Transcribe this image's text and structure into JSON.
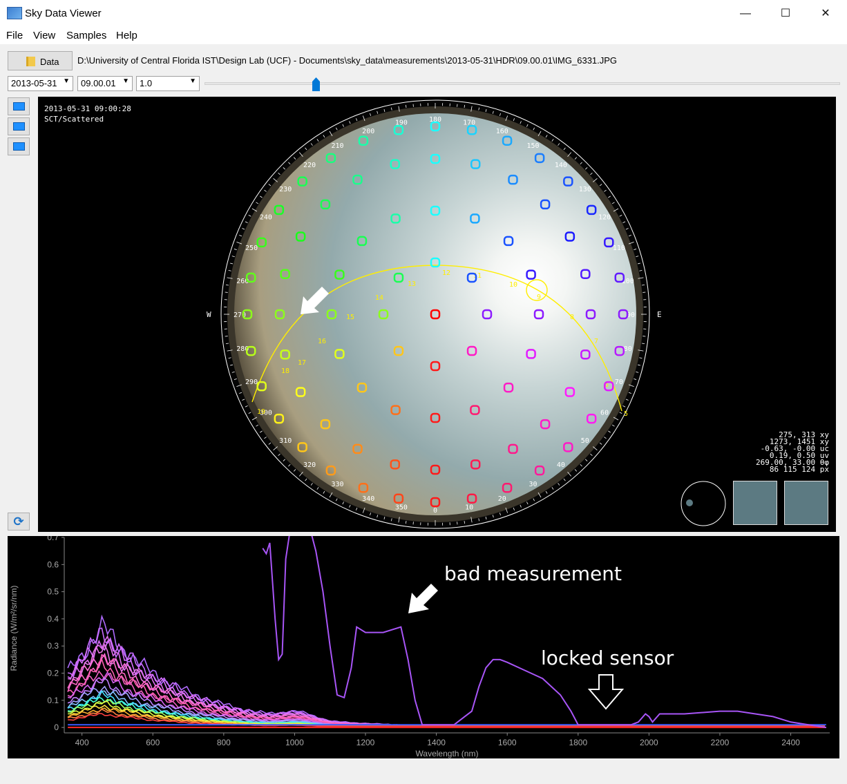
{
  "window": {
    "title": "Sky Data Viewer",
    "minimize": "—",
    "maximize": "☐",
    "close": "✕"
  },
  "menu": [
    "File",
    "View",
    "Samples",
    "Help"
  ],
  "toolbar": {
    "data_button": "Data",
    "path": "D:\\University of Central Florida IST\\Design Lab (UCF) - Documents\\sky_data\\measurements\\2013-05-31\\HDR\\09.00.01\\IMG_6331.JPG",
    "date": "2013-05-31",
    "time": "09.00.01",
    "exposure": "1.0",
    "slider_fraction": 0.175
  },
  "viewer": {
    "timestamp": "2013-05-31 09:00:28",
    "condition": "SCT/Scattered",
    "compass_w": "W",
    "compass_e": "E",
    "azimuth_labels": [
      "0",
      "10",
      "20",
      "30",
      "40",
      "50",
      "60",
      "70",
      "80",
      "90",
      "100",
      "110",
      "120",
      "130",
      "140",
      "150",
      "160",
      "170",
      "180",
      "190",
      "200",
      "210",
      "220",
      "230",
      "240",
      "250",
      "260",
      "270",
      "280",
      "290",
      "300",
      "310",
      "320",
      "330",
      "340",
      "350"
    ],
    "sun_path_hours": [
      "5",
      "6",
      "7",
      "8",
      "9",
      "10",
      "11",
      "12",
      "13",
      "14",
      "15",
      "16",
      "17",
      "18",
      "19"
    ],
    "readout": [
      "275, 313 xy",
      "1273, 1451 xy",
      "-0.63, -0.00 uc",
      "0.19, 0.50 uv",
      "269.00, 33.00 θφ",
      "86 115 124 px"
    ],
    "thumb_color": "#5c7a82",
    "sun_path_color": "#ffee00"
  },
  "chart_data": {
    "type": "line",
    "xlabel": "Wavelength (nm)",
    "ylabel": "Radiance (W/m²/sr/nm)",
    "xlim": [
      350,
      2510
    ],
    "ylim": [
      -0.02,
      0.7
    ],
    "x_ticks": [
      "400",
      "600",
      "800",
      "1000",
      "1200",
      "1400",
      "1600",
      "1800",
      "2000",
      "2200",
      "2400"
    ],
    "y_ticks": [
      "0",
      "0.1",
      "0.2",
      "0.3",
      "0.4",
      "0.5",
      "0.6",
      "0.7"
    ],
    "annotations": {
      "bad": "bad measurement",
      "locked": "locked sensor"
    },
    "bad_series": {
      "color": "#a855f7",
      "x": [
        910,
        920,
        930,
        945,
        955,
        965,
        975,
        990,
        1000,
        1020,
        1040,
        1060,
        1080,
        1100,
        1120,
        1140,
        1160,
        1175,
        1200,
        1250,
        1300,
        1320,
        1340,
        1360,
        1400,
        1450,
        1480,
        1500,
        1520,
        1540,
        1560,
        1580,
        1600,
        1650,
        1700,
        1750,
        1780,
        1800,
        1820,
        1850,
        1900,
        1950,
        1970,
        1990,
        2000,
        2010,
        2030,
        2100,
        2200,
        2250,
        2300,
        2350,
        2400,
        2450,
        2500
      ],
      "y": [
        0.66,
        0.64,
        0.68,
        0.4,
        0.25,
        0.27,
        0.62,
        0.75,
        0.75,
        0.75,
        0.75,
        0.65,
        0.5,
        0.3,
        0.12,
        0.11,
        0.22,
        0.37,
        0.35,
        0.35,
        0.37,
        0.25,
        0.1,
        0.01,
        0.01,
        0.01,
        0.04,
        0.06,
        0.15,
        0.22,
        0.25,
        0.25,
        0.24,
        0.21,
        0.18,
        0.12,
        0.06,
        0.01,
        0.01,
        0.01,
        0.01,
        0.01,
        0.02,
        0.05,
        0.04,
        0.02,
        0.05,
        0.05,
        0.06,
        0.06,
        0.05,
        0.04,
        0.02,
        0.01,
        0.0
      ]
    },
    "flat_series": [
      {
        "color": "#3b5bff",
        "value": 0.01
      },
      {
        "color": "#ff2a2a",
        "value": 0.0
      }
    ],
    "family_peaks": [
      0.37,
      0.35,
      0.33,
      0.31,
      0.29,
      0.27,
      0.25,
      0.23,
      0.21,
      0.19,
      0.17,
      0.15,
      0.13,
      0.12,
      0.11,
      0.1,
      0.09,
      0.08,
      0.07,
      0.06,
      0.05
    ],
    "family_colors": [
      "#b06bff",
      "#c86bff",
      "#d870ff",
      "#e070f0",
      "#e878e8",
      "#ff70d8",
      "#ff66c4",
      "#ff5fb0",
      "#f060c0",
      "#d860f0",
      "#c080ff",
      "#a0a0ff",
      "#80c0ff",
      "#40e0ff",
      "#40ffd0",
      "#a0ff60",
      "#e0ff40",
      "#ffe040",
      "#ffb030",
      "#ff8040",
      "#ff4040"
    ]
  }
}
